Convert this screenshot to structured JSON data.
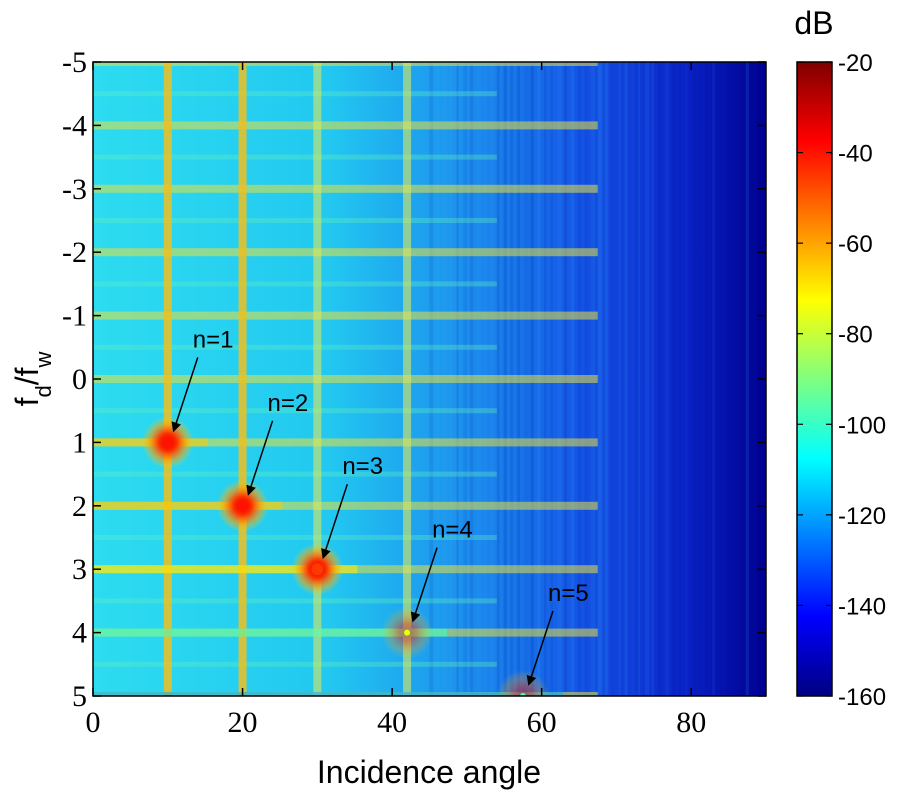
{
  "chart_data": {
    "type": "heatmap",
    "title": "",
    "xlabel": "Incidence angle",
    "ylabel_main": "f",
    "ylabel_sub1": "d",
    "ylabel_slash": "/f",
    "ylabel_sub2": "w",
    "xlim": [
      0,
      90
    ],
    "ylim": [
      -5,
      5
    ],
    "x_ticks": [
      0,
      20,
      40,
      60,
      80
    ],
    "y_ticks": [
      -5,
      -4,
      -3,
      -2,
      -1,
      0,
      1,
      2,
      3,
      4,
      5
    ],
    "colorbar": {
      "label": "dB",
      "range": [
        -160,
        -20
      ],
      "ticks": [
        -20,
        -40,
        -60,
        -80,
        -100,
        -120,
        -140,
        -160
      ],
      "colormap": "jet"
    },
    "grating_lobes": [
      {
        "label": "n=1",
        "angle": 10,
        "fd_fw": 1,
        "level_db": -40
      },
      {
        "label": "n=2",
        "angle": 20,
        "fd_fw": 2,
        "level_db": -40
      },
      {
        "label": "n=3",
        "angle": 30,
        "fd_fw": 3,
        "level_db": -45
      },
      {
        "label": "n=4",
        "angle": 42,
        "fd_fw": 4,
        "level_db": -75
      },
      {
        "label": "n=5",
        "angle": 57.5,
        "fd_fw": 5,
        "level_db": -95
      }
    ],
    "vertical_lines_deg": [
      10,
      20,
      30,
      42
    ],
    "background_db_near_0deg": -105,
    "background_db_near_90deg": -155
  }
}
